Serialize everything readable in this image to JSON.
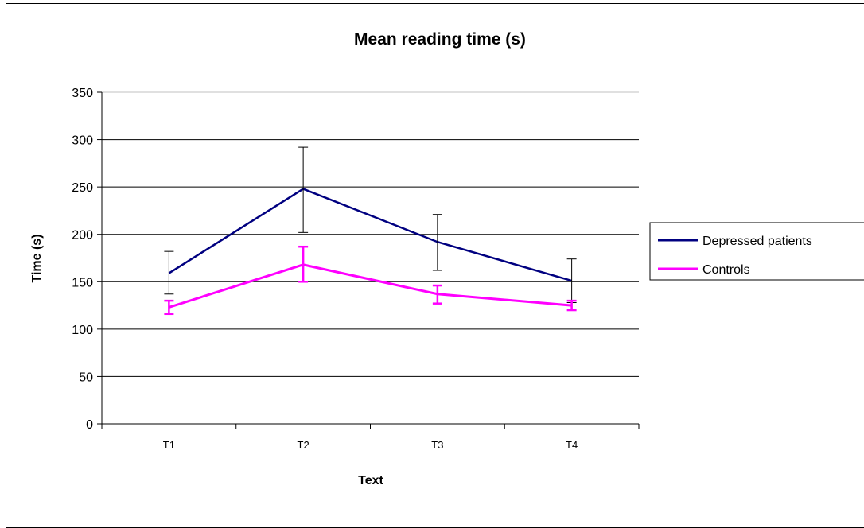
{
  "chart_data": {
    "type": "line",
    "title": "Mean reading time (s)",
    "xlabel": "Text",
    "ylabel": "Time (s)",
    "categories": [
      "T1",
      "T2",
      "T3",
      "T4"
    ],
    "ylim": [
      0,
      350
    ],
    "yticks": [
      0,
      50,
      100,
      150,
      200,
      250,
      300,
      350
    ],
    "grid": true,
    "legend_position": "right",
    "series": [
      {
        "name": "Depressed patients",
        "color": "#000080",
        "values": [
          159,
          248,
          192,
          151
        ],
        "error_low": [
          137,
          202,
          162,
          128
        ],
        "error_high": [
          182,
          292,
          221,
          174
        ]
      },
      {
        "name": "Controls",
        "color": "#ff00ff",
        "values": [
          123,
          168,
          137,
          125
        ],
        "error_low": [
          116,
          150,
          127,
          120
        ],
        "error_high": [
          130,
          187,
          146,
          130
        ]
      }
    ]
  }
}
